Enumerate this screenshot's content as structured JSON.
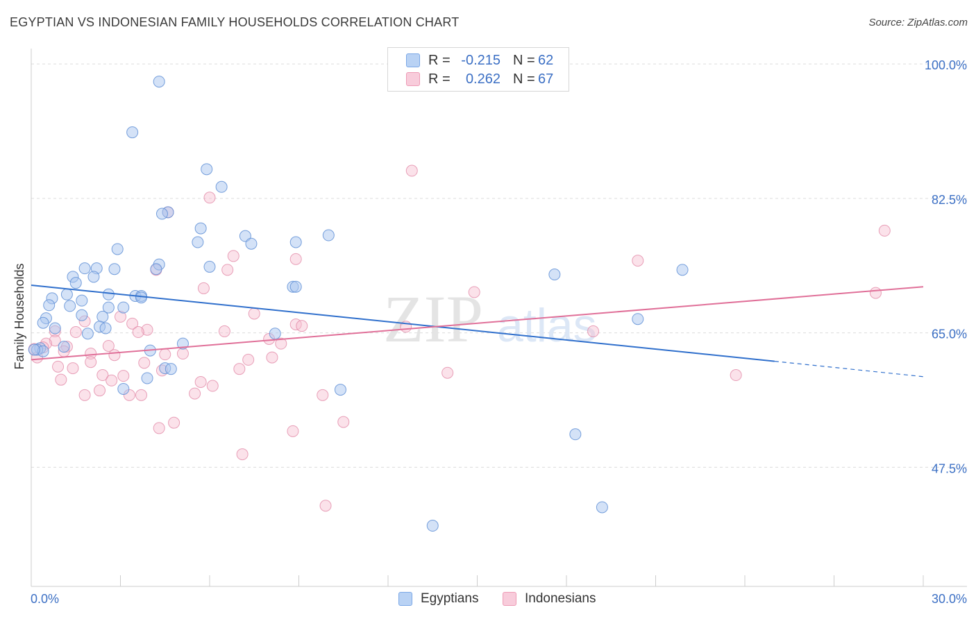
{
  "header": {
    "title": "EGYPTIAN VS INDONESIAN FAMILY HOUSEHOLDS CORRELATION CHART",
    "source": "Source: ZipAtlas.com"
  },
  "watermark": {
    "zip": "ZIP",
    "atlas": "atlas"
  },
  "legend": {
    "r_label": "R =",
    "n_label": "N =",
    "egyptians": {
      "r": "-0.215",
      "n": "62",
      "color": "#7aa7e6"
    },
    "indonesians": {
      "r": "0.262",
      "n": "67",
      "color": "#ee9ab5"
    }
  },
  "colors": {
    "egypt_fill": "#a9c6f0",
    "egypt_stroke": "#5f8fd6",
    "egypt_line": "#2f6fcc",
    "indo_fill": "#f6bfd0",
    "indo_stroke": "#e28aa8",
    "indo_line": "#e06f98",
    "axis_label": "#3b6fc4"
  },
  "chart_data": {
    "type": "scatter",
    "title": "EGYPTIAN VS INDONESIAN FAMILY HOUSEHOLDS CORRELATION CHART",
    "xlabel": "",
    "ylabel": "Family Households",
    "xlim": [
      0.0,
      30.0
    ],
    "ylim": [
      32.0,
      102.0
    ],
    "x_tick_labels": [
      "0.0%",
      "30.0%"
    ],
    "y_ticks": [
      47.5,
      65.0,
      82.5,
      100.0
    ],
    "y_tick_labels": [
      "47.5%",
      "65.0%",
      "82.5%",
      "100.0%"
    ],
    "grid": true,
    "legend_position": "top-center",
    "series": [
      {
        "name": "Egyptians",
        "r": -0.215,
        "n": 62,
        "trend": {
          "x0": 0.0,
          "y0": 71.2,
          "x1": 25.0,
          "y1": 61.3,
          "dashed_to_x": 30.0,
          "dashed_to_y": 59.3
        },
        "points": [
          [
            4.3,
            97.7
          ],
          [
            3.4,
            91.1
          ],
          [
            5.9,
            86.3
          ],
          [
            6.4,
            84.0
          ],
          [
            4.6,
            80.7
          ],
          [
            4.4,
            80.5
          ],
          [
            5.7,
            78.6
          ],
          [
            7.2,
            77.6
          ],
          [
            10.0,
            77.7
          ],
          [
            5.6,
            76.8
          ],
          [
            8.9,
            76.8
          ],
          [
            7.4,
            76.6
          ],
          [
            2.9,
            75.9
          ],
          [
            4.3,
            73.9
          ],
          [
            4.2,
            73.3
          ],
          [
            6.0,
            73.6
          ],
          [
            1.8,
            73.4
          ],
          [
            2.2,
            73.4
          ],
          [
            2.8,
            73.3
          ],
          [
            1.4,
            72.3
          ],
          [
            2.1,
            72.3
          ],
          [
            1.5,
            71.5
          ],
          [
            8.8,
            71.0
          ],
          [
            8.9,
            71.0
          ],
          [
            17.6,
            72.6
          ],
          [
            21.9,
            73.2
          ],
          [
            1.2,
            70.0
          ],
          [
            0.7,
            69.5
          ],
          [
            2.6,
            70.0
          ],
          [
            3.5,
            69.8
          ],
          [
            3.7,
            69.8
          ],
          [
            3.7,
            69.6
          ],
          [
            1.7,
            69.2
          ],
          [
            0.6,
            68.6
          ],
          [
            1.3,
            68.5
          ],
          [
            2.6,
            68.3
          ],
          [
            3.1,
            68.3
          ],
          [
            1.7,
            67.3
          ],
          [
            2.4,
            67.1
          ],
          [
            0.5,
            66.9
          ],
          [
            20.4,
            66.8
          ],
          [
            0.4,
            66.3
          ],
          [
            0.8,
            65.6
          ],
          [
            2.3,
            65.8
          ],
          [
            2.5,
            65.6
          ],
          [
            1.9,
            64.9
          ],
          [
            8.2,
            64.9
          ],
          [
            5.1,
            63.6
          ],
          [
            0.3,
            63.0
          ],
          [
            1.1,
            63.2
          ],
          [
            0.2,
            62.8
          ],
          [
            0.4,
            62.6
          ],
          [
            4.0,
            62.7
          ],
          [
            4.5,
            60.4
          ],
          [
            4.7,
            60.3
          ],
          [
            3.9,
            59.1
          ],
          [
            3.1,
            57.7
          ],
          [
            10.4,
            57.6
          ],
          [
            18.3,
            51.8
          ],
          [
            19.2,
            42.3
          ],
          [
            13.5,
            39.9
          ],
          [
            0.1,
            62.8
          ]
        ]
      },
      {
        "name": "Indonesians",
        "r": 0.262,
        "n": 67,
        "trend": {
          "x0": 0.0,
          "y0": 61.5,
          "x1": 30.0,
          "y1": 71.0
        },
        "points": [
          [
            12.8,
            86.1
          ],
          [
            6.0,
            82.6
          ],
          [
            4.6,
            80.7
          ],
          [
            28.7,
            78.3
          ],
          [
            6.8,
            75.0
          ],
          [
            8.9,
            74.6
          ],
          [
            20.4,
            74.4
          ],
          [
            4.2,
            73.2
          ],
          [
            6.6,
            73.2
          ],
          [
            5.8,
            70.8
          ],
          [
            14.9,
            70.3
          ],
          [
            28.4,
            70.2
          ],
          [
            7.5,
            67.5
          ],
          [
            3.0,
            67.1
          ],
          [
            1.8,
            66.5
          ],
          [
            3.4,
            66.2
          ],
          [
            8.9,
            66.1
          ],
          [
            9.1,
            65.9
          ],
          [
            12.6,
            65.8
          ],
          [
            3.9,
            65.4
          ],
          [
            3.6,
            65.1
          ],
          [
            1.5,
            65.1
          ],
          [
            6.5,
            65.2
          ],
          [
            18.9,
            65.2
          ],
          [
            0.8,
            65.2
          ],
          [
            8.0,
            64.2
          ],
          [
            0.8,
            64.0
          ],
          [
            8.4,
            63.6
          ],
          [
            0.5,
            63.6
          ],
          [
            2.6,
            63.3
          ],
          [
            1.2,
            63.2
          ],
          [
            0.4,
            63.1
          ],
          [
            0.1,
            62.9
          ],
          [
            1.1,
            62.6
          ],
          [
            2.0,
            62.3
          ],
          [
            2.8,
            62.1
          ],
          [
            4.5,
            62.2
          ],
          [
            5.1,
            62.3
          ],
          [
            8.1,
            61.8
          ],
          [
            0.2,
            61.8
          ],
          [
            7.3,
            61.5
          ],
          [
            2.0,
            61.2
          ],
          [
            3.8,
            61.1
          ],
          [
            0.9,
            60.6
          ],
          [
            1.4,
            60.4
          ],
          [
            7.0,
            60.3
          ],
          [
            4.4,
            60.1
          ],
          [
            14.0,
            59.8
          ],
          [
            23.7,
            59.5
          ],
          [
            2.4,
            59.5
          ],
          [
            3.1,
            59.4
          ],
          [
            2.7,
            58.8
          ],
          [
            1.0,
            58.9
          ],
          [
            5.7,
            58.6
          ],
          [
            6.1,
            58.1
          ],
          [
            2.3,
            57.5
          ],
          [
            1.8,
            56.9
          ],
          [
            3.3,
            56.9
          ],
          [
            3.7,
            56.9
          ],
          [
            5.5,
            57.1
          ],
          [
            9.8,
            56.9
          ],
          [
            4.8,
            53.3
          ],
          [
            10.5,
            53.4
          ],
          [
            4.3,
            52.6
          ],
          [
            8.8,
            52.2
          ],
          [
            7.1,
            49.2
          ],
          [
            9.9,
            42.5
          ]
        ]
      }
    ]
  },
  "bottom_legend": {
    "egyptians": "Egyptians",
    "indonesians": "Indonesians"
  }
}
